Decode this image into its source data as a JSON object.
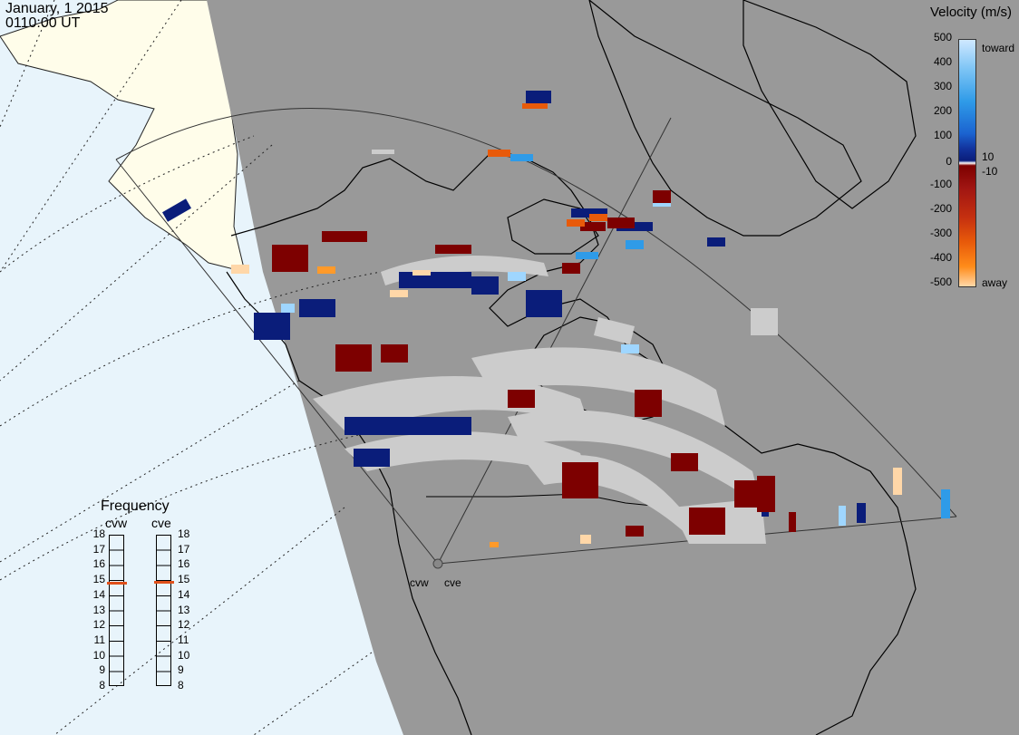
{
  "header": {
    "date": "January, 1 2015",
    "time": "0110:00 UT"
  },
  "legend": {
    "title": "Velocity (m/s)",
    "ticks": [
      "500",
      "400",
      "300",
      "200",
      "100",
      "10",
      "0",
      "-10",
      "-100",
      "-200",
      "-300",
      "-400",
      "-500"
    ],
    "toward_label": "toward",
    "away_label": "away",
    "color_stops": [
      "#cfe8ff",
      "#7cc4f5",
      "#2f9be8",
      "#1b63d0",
      "#12349e",
      "#0a1d7a",
      "#7d0000",
      "#a01512",
      "#c53010",
      "#e85a0a",
      "#ff8c1a",
      "#ffd7a8"
    ]
  },
  "frequency": {
    "title": "Frequency",
    "channels": [
      {
        "name": "cvw",
        "value": 14.8
      },
      {
        "name": "cve",
        "value": 14.9
      }
    ],
    "ticks": [
      "18",
      "17",
      "16",
      "15",
      "14",
      "13",
      "12",
      "11",
      "10",
      "9",
      "8"
    ],
    "marker_color": "#e0501a"
  },
  "radars": {
    "west": "cvw",
    "east": "cve"
  },
  "colors": {
    "night": "#999999",
    "ocean": "#e8f4fb",
    "land_day": "#fffdea",
    "ground_scatter": "#cccccc"
  }
}
